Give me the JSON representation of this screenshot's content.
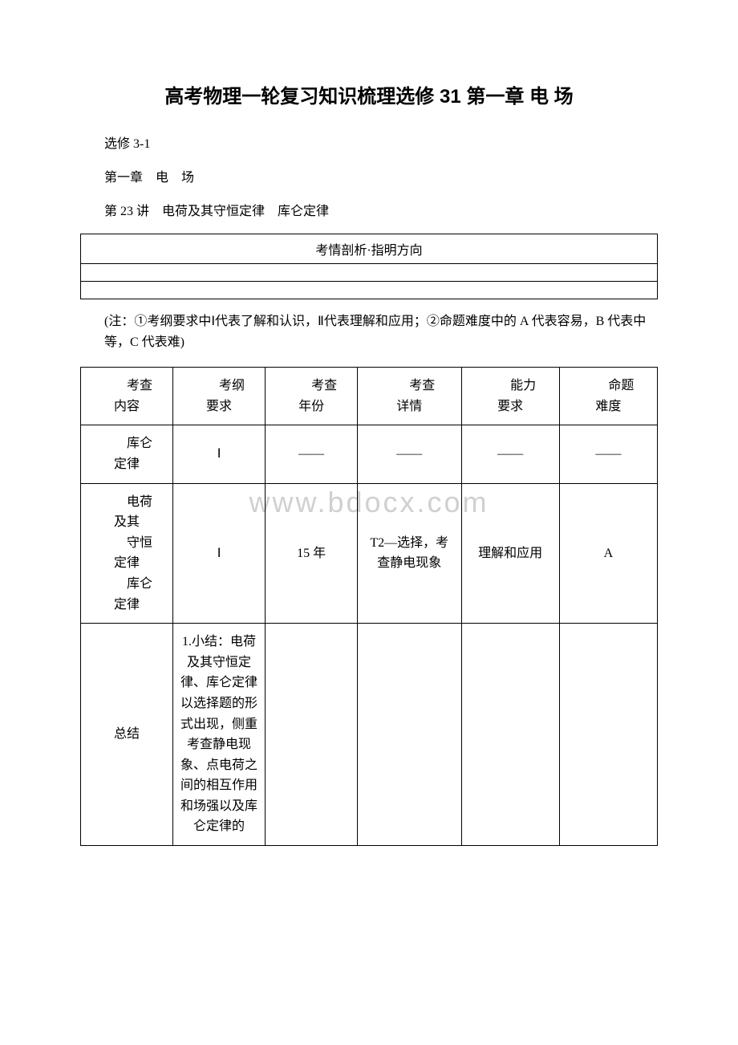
{
  "title": "高考物理一轮复习知识梳理选修 31 第一章 电 场",
  "line1": "选修 3-1",
  "line2": "第一章　电　场",
  "line3": "第 23 讲　电荷及其守恒定律　库仑定律",
  "banner": {
    "text": "考情剖析·指明方向"
  },
  "note": "(注：①考纲要求中Ⅰ代表了解和认识，Ⅱ代表理解和应用；②命题难度中的 A 代表容易，B 代表中等，C 代表难)",
  "watermark": "www.bdocx.com",
  "table": {
    "headers": {
      "col1_a": "考查",
      "col1_b": "内容",
      "col2_a": "考纲",
      "col2_b": "要求",
      "col3_a": "考查",
      "col3_b": "年份",
      "col4_a": "考查",
      "col4_b": "详情",
      "col5_a": "能力",
      "col5_b": "要求",
      "col6_a": "命题",
      "col6_b": "难度"
    },
    "row1": {
      "c1_a": "库仑",
      "c1_b": "定律",
      "c2": "Ⅰ",
      "c3": "——",
      "c4": "——",
      "c5": "——",
      "c6": "——"
    },
    "row2": {
      "c1": "电荷\n及其\n守恒\n定律\n库仑\n定律",
      "c1_a": "电荷",
      "c1_b": "及其",
      "c1_c": "守恒",
      "c1_d": "定律",
      "c1_e": "库仑",
      "c1_f": "定律",
      "c2": "Ⅰ",
      "c3": "15 年",
      "c4": "T2—选择，考查静电现象",
      "c5": "理解和应用",
      "c6": "A"
    },
    "row3": {
      "c1": "总结",
      "c2": "1.小结：电荷及其守恒定律、库仑定律以选择题的形式出现，侧重考查静电现象、点电荷之间的相互作用和场强以及库仑定律的"
    }
  }
}
